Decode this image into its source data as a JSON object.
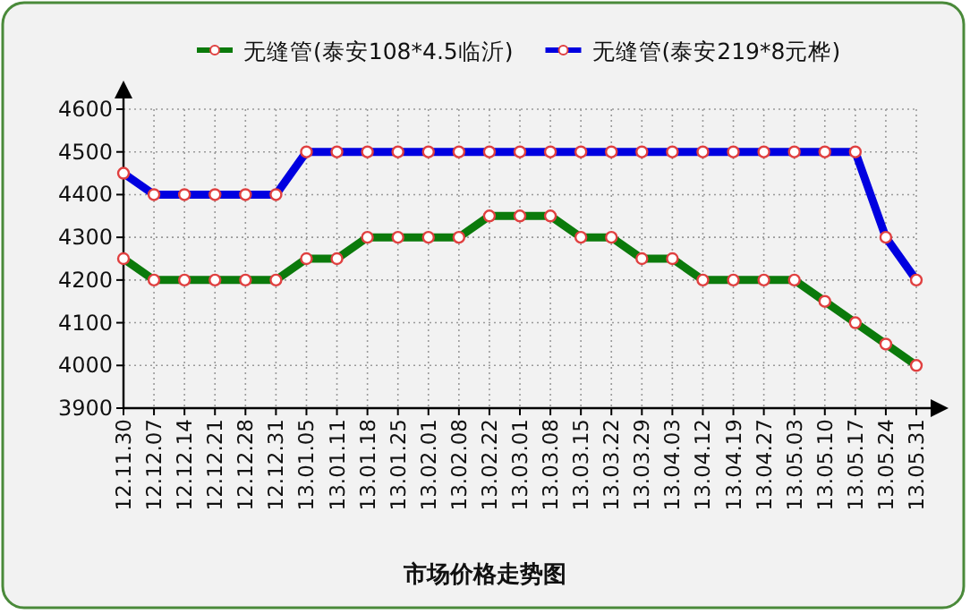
{
  "chart_data": {
    "type": "line",
    "title": "市场价格走势图",
    "categories": [
      "12.11.30",
      "12.12.07",
      "12.12.14",
      "12.12.21",
      "12.12.28",
      "12.12.31",
      "13.01.05",
      "13.01.11",
      "13.01.18",
      "13.01.25",
      "13.02.01",
      "13.02.08",
      "13.02.22",
      "13.03.01",
      "13.03.08",
      "13.03.15",
      "13.03.22",
      "13.03.29",
      "13.04.03",
      "13.04.12",
      "13.04.19",
      "13.04.27",
      "13.05.03",
      "13.05.10",
      "13.05.17",
      "13.05.24",
      "13.05.31"
    ],
    "series": [
      {
        "name": "无缝管(泰安108*4.5临沂)",
        "color": "#0b7a0b",
        "values": [
          4250,
          4200,
          4200,
          4200,
          4200,
          4200,
          4250,
          4250,
          4300,
          4300,
          4300,
          4300,
          4350,
          4350,
          4350,
          4300,
          4300,
          4250,
          4250,
          4200,
          4200,
          4200,
          4200,
          4150,
          4100,
          4050,
          4000
        ]
      },
      {
        "name": "无缝管(泰安219*8元桦)",
        "color": "#0000e0",
        "values": [
          4450,
          4400,
          4400,
          4400,
          4400,
          4400,
          4500,
          4500,
          4500,
          4500,
          4500,
          4500,
          4500,
          4500,
          4500,
          4500,
          4500,
          4500,
          4500,
          4500,
          4500,
          4500,
          4500,
          4500,
          4500,
          4300,
          4200
        ]
      }
    ],
    "ylim": [
      3900,
      4600
    ],
    "yticks": [
      3900,
      4000,
      4100,
      4200,
      4300,
      4400,
      4500,
      4600
    ],
    "grid": true,
    "legend": "top",
    "marker": "circle",
    "line_style": "solid"
  }
}
